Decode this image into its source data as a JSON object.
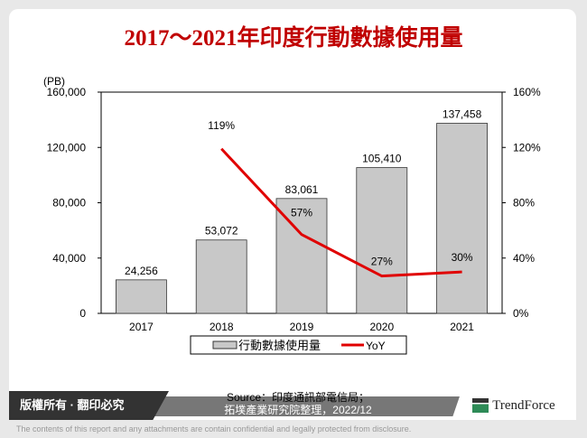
{
  "title": "2017～2021年印度行動數據使用量",
  "chart_data": {
    "type": "bar+line",
    "title": "2017～2021年印度行動數據使用量",
    "ylabel": "(PB)",
    "categories": [
      "2017",
      "2018",
      "2019",
      "2020",
      "2021"
    ],
    "ylim": [
      0,
      160000
    ],
    "yticks": [
      "0",
      "40,000",
      "80,000",
      "120,000",
      "160,000"
    ],
    "y2lim": [
      0,
      1.6
    ],
    "y2ticks": [
      "0%",
      "40%",
      "80%",
      "120%",
      "160%"
    ],
    "series": [
      {
        "name": "行動數據使用量",
        "type": "bar",
        "values": [
          24256,
          53072,
          83061,
          105410,
          137458
        ],
        "labels": [
          "24,256",
          "53,072",
          "83,061",
          "105,410",
          "137,458"
        ],
        "color": "#c8c8c8"
      },
      {
        "name": "YoY",
        "type": "line",
        "axis": "right",
        "values": [
          null,
          1.19,
          0.57,
          0.27,
          0.3
        ],
        "labels": [
          "",
          "119%",
          "57%",
          "27%",
          "30%"
        ],
        "color": "#e00000"
      }
    ],
    "legend": "bottom"
  },
  "footer": {
    "copyright": "版權所有 · 翻印必究",
    "source_line1": "Source：印度通訊部電信局；",
    "source_line2": "拓墣產業研究院整理，2022/12",
    "logo": "TRENDFORCE",
    "disclaimer": "The contents of this report and any attachments are contain confidential and legally protected from disclosure."
  }
}
